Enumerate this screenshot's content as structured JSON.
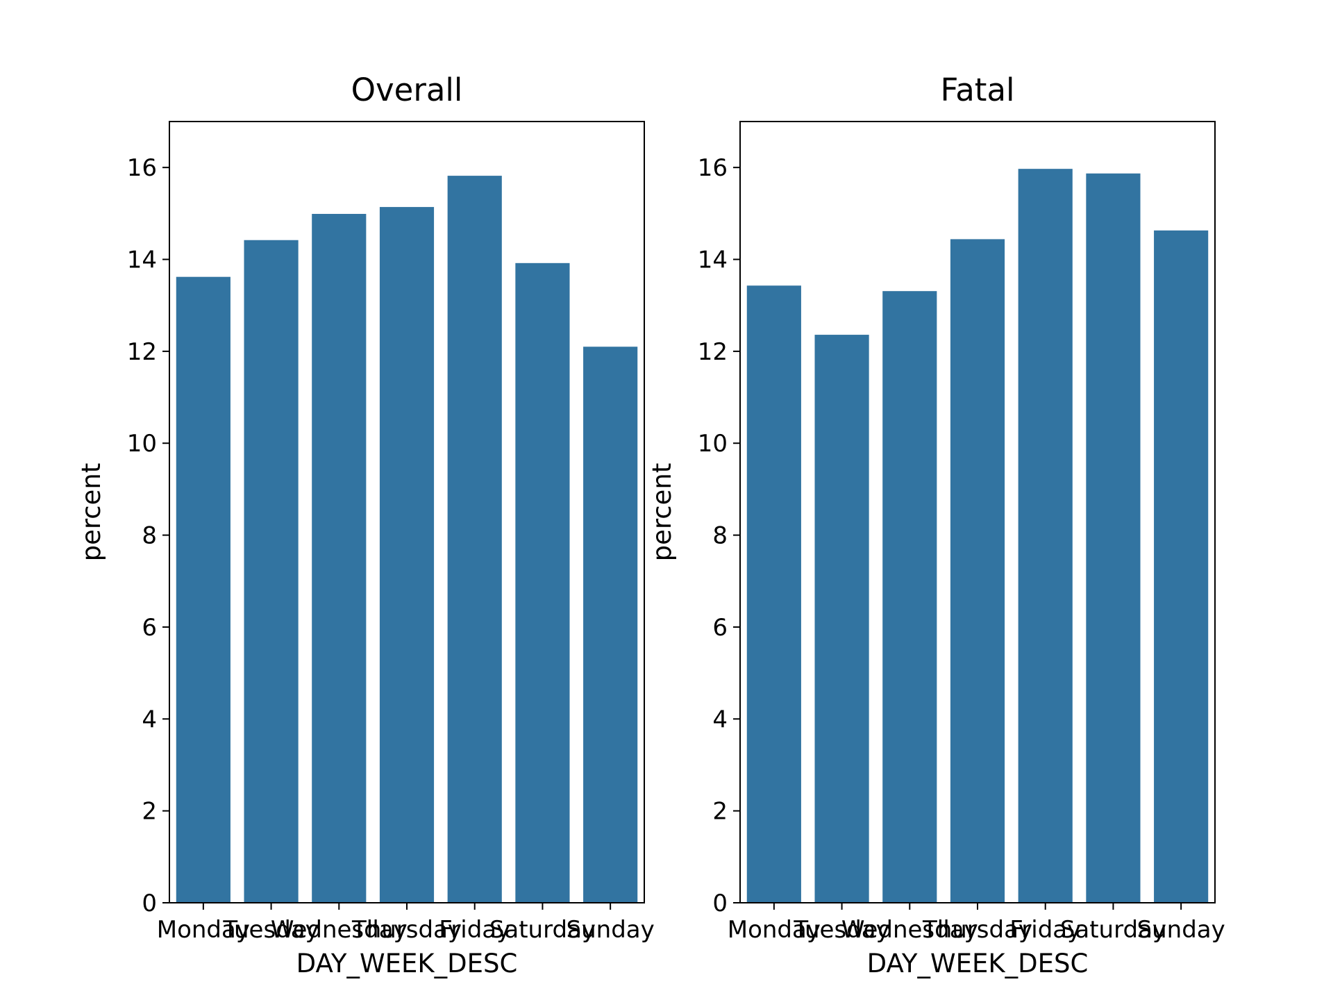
{
  "chart_data": [
    {
      "type": "bar",
      "title": "Overall",
      "xlabel": "DAY_WEEK_DESC",
      "ylabel": "percent",
      "categories": [
        "Monday",
        "Tuesday",
        "Wednesday",
        "Thursday",
        "Friday",
        "Saturday",
        "Sunday"
      ],
      "values": [
        13.62,
        14.42,
        14.99,
        15.14,
        15.82,
        13.92,
        12.1
      ],
      "ylim": [
        0,
        17
      ],
      "yticks": [
        0,
        2,
        4,
        6,
        8,
        10,
        12,
        14,
        16
      ],
      "bar_color": "#3274a1",
      "grid": false
    },
    {
      "type": "bar",
      "title": "Fatal",
      "xlabel": "DAY_WEEK_DESC",
      "ylabel": "percent",
      "categories": [
        "Monday",
        "Tuesday",
        "Wednesday",
        "Thursday",
        "Friday",
        "Saturday",
        "Sunday"
      ],
      "values": [
        13.43,
        12.36,
        13.31,
        14.44,
        15.97,
        15.87,
        14.63
      ],
      "ylim": [
        0,
        17
      ],
      "yticks": [
        0,
        2,
        4,
        6,
        8,
        10,
        12,
        14,
        16
      ],
      "bar_color": "#3274a1",
      "grid": false
    }
  ]
}
